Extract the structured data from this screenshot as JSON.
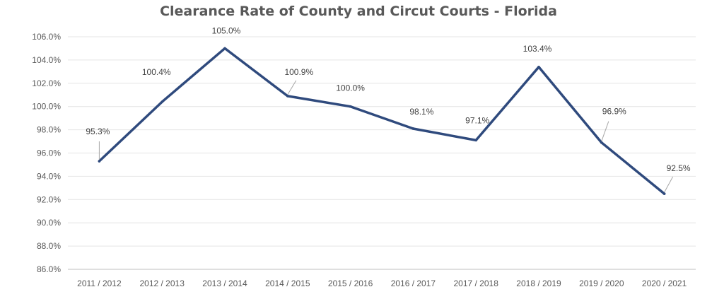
{
  "chart_data": {
    "type": "line",
    "title": "Clearance Rate of County and Circut Courts - Florida",
    "xlabel": "",
    "ylabel": "",
    "categories": [
      "2011 / 2012",
      "2012 / 2013",
      "2013 / 2014",
      "2014 / 2015",
      "2015 / 2016",
      "2016 / 2017",
      "2017 / 2018",
      "2018 / 2019",
      "2019 / 2020",
      "2020 / 2021"
    ],
    "series": [
      {
        "values": [
          95.3,
          100.4,
          105.0,
          100.9,
          100.0,
          98.1,
          97.1,
          103.4,
          96.9,
          92.5
        ],
        "labels": [
          "95.3%",
          "100.4%",
          "105.0%",
          "100.9%",
          "100.0%",
          "98.1%",
          "97.1%",
          "103.4%",
          "96.9%",
          "92.5%"
        ],
        "color": "#2f4a7d"
      }
    ],
    "ylim": [
      86,
      106
    ],
    "yticks": [
      "86.0%",
      "88.0%",
      "90.0%",
      "92.0%",
      "94.0%",
      "96.0%",
      "98.0%",
      "100.0%",
      "102.0%",
      "104.0%",
      "106.0%"
    ],
    "grid": true,
    "legend": "none"
  }
}
